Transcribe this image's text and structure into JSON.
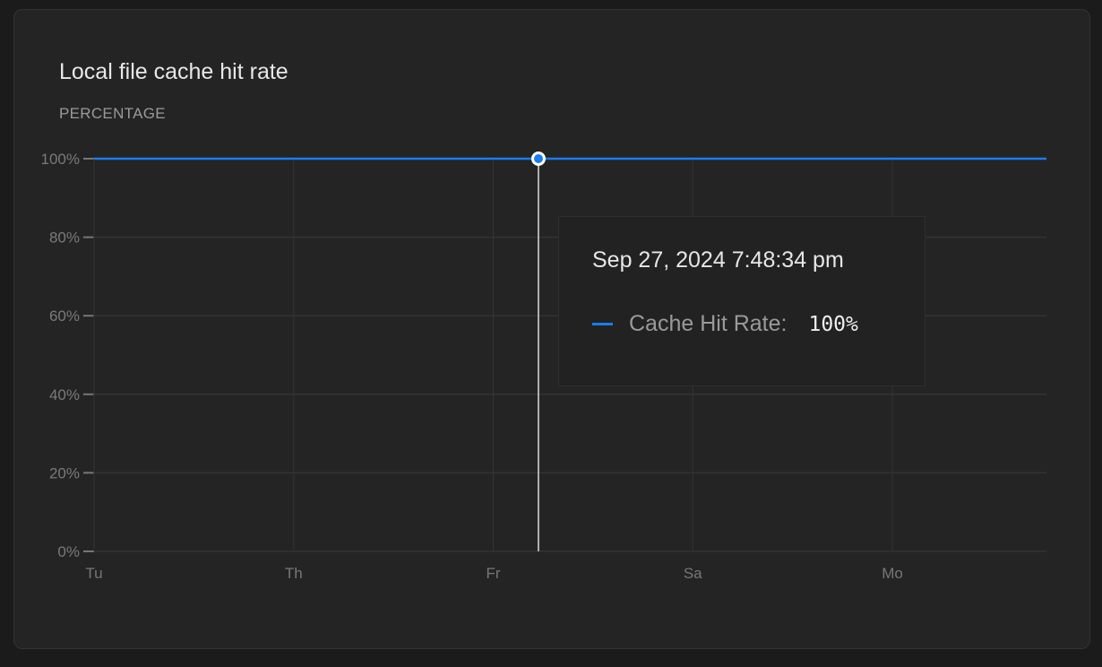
{
  "chart_data": {
    "type": "line",
    "title": "Local file cache hit rate",
    "ylabel": "PERCENTAGE",
    "ylim": [
      0,
      100
    ],
    "y_ticks": [
      "0%",
      "20%",
      "40%",
      "60%",
      "80%",
      "100%"
    ],
    "x_ticks": [
      "Tu",
      "Th",
      "Fr",
      "Sa",
      "Mo"
    ],
    "grid": true,
    "series": [
      {
        "name": "Cache Hit Rate",
        "values": [
          100,
          100,
          100,
          100,
          100,
          100
        ],
        "color": "#1a7cf0"
      }
    ],
    "tooltip": {
      "date": "Sep 27, 2024 7:48:34 pm",
      "label": "Cache Hit Rate:",
      "value": "100%"
    }
  }
}
